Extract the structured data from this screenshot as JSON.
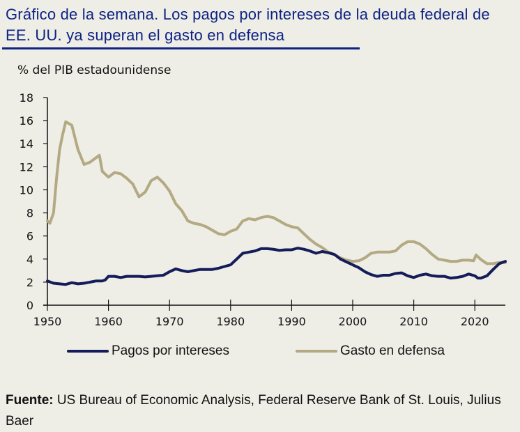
{
  "header": {
    "title": "Gráfico de la semana. Los pagos por intereses de la deuda federal de EE. UU. ya superan el gasto en defensa"
  },
  "colors": {
    "title": "#0d2384",
    "interest": "#141c5a",
    "defense": "#b3aa83",
    "background": "#eeede6"
  },
  "source": {
    "label": "Fuente:",
    "text": " US Bureau of Economic Analysis, Federal Reserve Bank of St. Louis, Julius Baer"
  },
  "chart_data": {
    "type": "line",
    "title": "Gráfico de la semana. Los pagos por intereses de la deuda federal de EE. UU. ya superan el gasto en defensa",
    "xlabel": "",
    "ylabel": "% del PIB estadounidense",
    "xlim": [
      1950,
      2025
    ],
    "ylim": [
      0,
      18
    ],
    "x_ticks": [
      1950,
      1960,
      1970,
      1980,
      1990,
      2000,
      2010,
      2020
    ],
    "y_ticks": [
      0,
      2,
      4,
      6,
      8,
      10,
      12,
      14,
      16,
      18
    ],
    "grid": false,
    "legend_position": "bottom",
    "series": [
      {
        "name": "Pagos por intereses",
        "color": "#141c5a",
        "points": [
          [
            1950,
            2.1
          ],
          [
            1951,
            1.9
          ],
          [
            1952,
            1.85
          ],
          [
            1953,
            1.8
          ],
          [
            1954,
            1.95
          ],
          [
            1955,
            1.85
          ],
          [
            1956,
            1.9
          ],
          [
            1957,
            2.0
          ],
          [
            1958,
            2.1
          ],
          [
            1959,
            2.1
          ],
          [
            1959.5,
            2.2
          ],
          [
            1960,
            2.5
          ],
          [
            1961,
            2.5
          ],
          [
            1962,
            2.4
          ],
          [
            1963,
            2.5
          ],
          [
            1964,
            2.5
          ],
          [
            1965,
            2.5
          ],
          [
            1966,
            2.45
          ],
          [
            1967,
            2.5
          ],
          [
            1968,
            2.55
          ],
          [
            1969,
            2.6
          ],
          [
            1970,
            2.9
          ],
          [
            1971,
            3.15
          ],
          [
            1972,
            3.0
          ],
          [
            1973,
            2.9
          ],
          [
            1974,
            3.0
          ],
          [
            1975,
            3.1
          ],
          [
            1976,
            3.1
          ],
          [
            1977,
            3.1
          ],
          [
            1978,
            3.2
          ],
          [
            1979,
            3.35
          ],
          [
            1980,
            3.5
          ],
          [
            1981,
            4.0
          ],
          [
            1982,
            4.5
          ],
          [
            1983,
            4.6
          ],
          [
            1984,
            4.7
          ],
          [
            1985,
            4.9
          ],
          [
            1986,
            4.9
          ],
          [
            1987,
            4.85
          ],
          [
            1988,
            4.75
          ],
          [
            1989,
            4.8
          ],
          [
            1990,
            4.8
          ],
          [
            1991,
            4.95
          ],
          [
            1992,
            4.85
          ],
          [
            1993,
            4.7
          ],
          [
            1994,
            4.5
          ],
          [
            1995,
            4.65
          ],
          [
            1996,
            4.55
          ],
          [
            1997,
            4.4
          ],
          [
            1998,
            4.0
          ],
          [
            1999,
            3.75
          ],
          [
            2000,
            3.5
          ],
          [
            2001,
            3.25
          ],
          [
            2002,
            2.9
          ],
          [
            2003,
            2.65
          ],
          [
            2004,
            2.5
          ],
          [
            2005,
            2.6
          ],
          [
            2006,
            2.6
          ],
          [
            2007,
            2.75
          ],
          [
            2008,
            2.8
          ],
          [
            2009,
            2.55
          ],
          [
            2010,
            2.4
          ],
          [
            2011,
            2.6
          ],
          [
            2012,
            2.7
          ],
          [
            2013,
            2.55
          ],
          [
            2014,
            2.5
          ],
          [
            2015,
            2.5
          ],
          [
            2016,
            2.35
          ],
          [
            2017,
            2.4
          ],
          [
            2018,
            2.5
          ],
          [
            2019,
            2.7
          ],
          [
            2020,
            2.55
          ],
          [
            2020.5,
            2.35
          ],
          [
            2021,
            2.35
          ],
          [
            2022,
            2.55
          ],
          [
            2023,
            3.1
          ],
          [
            2024,
            3.6
          ],
          [
            2025,
            3.8
          ]
        ]
      },
      {
        "name": "Gasto en defensa",
        "color": "#b3aa83",
        "points": [
          [
            1950,
            7.3
          ],
          [
            1950.4,
            7.1
          ],
          [
            1951,
            8.0
          ],
          [
            1951.5,
            11.0
          ],
          [
            1952,
            13.5
          ],
          [
            1952.5,
            14.8
          ],
          [
            1953,
            15.9
          ],
          [
            1954,
            15.6
          ],
          [
            1955,
            13.5
          ],
          [
            1956,
            12.2
          ],
          [
            1957,
            12.4
          ],
          [
            1958,
            12.8
          ],
          [
            1958.5,
            13.0
          ],
          [
            1959,
            11.6
          ],
          [
            1960,
            11.1
          ],
          [
            1961,
            11.5
          ],
          [
            1962,
            11.4
          ],
          [
            1963,
            11.0
          ],
          [
            1964,
            10.5
          ],
          [
            1965,
            9.4
          ],
          [
            1966,
            9.8
          ],
          [
            1967,
            10.8
          ],
          [
            1968,
            11.1
          ],
          [
            1969,
            10.6
          ],
          [
            1970,
            9.9
          ],
          [
            1971,
            8.8
          ],
          [
            1972,
            8.2
          ],
          [
            1973,
            7.3
          ],
          [
            1974,
            7.1
          ],
          [
            1975,
            7.0
          ],
          [
            1976,
            6.8
          ],
          [
            1977,
            6.5
          ],
          [
            1978,
            6.2
          ],
          [
            1979,
            6.1
          ],
          [
            1980,
            6.4
          ],
          [
            1981,
            6.6
          ],
          [
            1982,
            7.3
          ],
          [
            1983,
            7.5
          ],
          [
            1984,
            7.4
          ],
          [
            1985,
            7.6
          ],
          [
            1986,
            7.7
          ],
          [
            1987,
            7.6
          ],
          [
            1988,
            7.3
          ],
          [
            1989,
            7.0
          ],
          [
            1990,
            6.8
          ],
          [
            1991,
            6.7
          ],
          [
            1992,
            6.2
          ],
          [
            1993,
            5.7
          ],
          [
            1994,
            5.3
          ],
          [
            1995,
            5.0
          ],
          [
            1996,
            4.6
          ],
          [
            1997,
            4.4
          ],
          [
            1998,
            4.1
          ],
          [
            1999,
            3.9
          ],
          [
            2000,
            3.8
          ],
          [
            2001,
            3.85
          ],
          [
            2002,
            4.1
          ],
          [
            2003,
            4.5
          ],
          [
            2004,
            4.6
          ],
          [
            2005,
            4.6
          ],
          [
            2006,
            4.6
          ],
          [
            2007,
            4.7
          ],
          [
            2008,
            5.2
          ],
          [
            2009,
            5.5
          ],
          [
            2010,
            5.5
          ],
          [
            2011,
            5.3
          ],
          [
            2012,
            4.9
          ],
          [
            2013,
            4.4
          ],
          [
            2014,
            4.0
          ],
          [
            2015,
            3.9
          ],
          [
            2016,
            3.8
          ],
          [
            2017,
            3.8
          ],
          [
            2018,
            3.9
          ],
          [
            2019,
            3.9
          ],
          [
            2019.8,
            3.85
          ],
          [
            2020.2,
            4.35
          ],
          [
            2021,
            3.95
          ],
          [
            2022,
            3.6
          ],
          [
            2023,
            3.6
          ],
          [
            2024,
            3.7
          ],
          [
            2025,
            3.7
          ]
        ]
      }
    ]
  }
}
